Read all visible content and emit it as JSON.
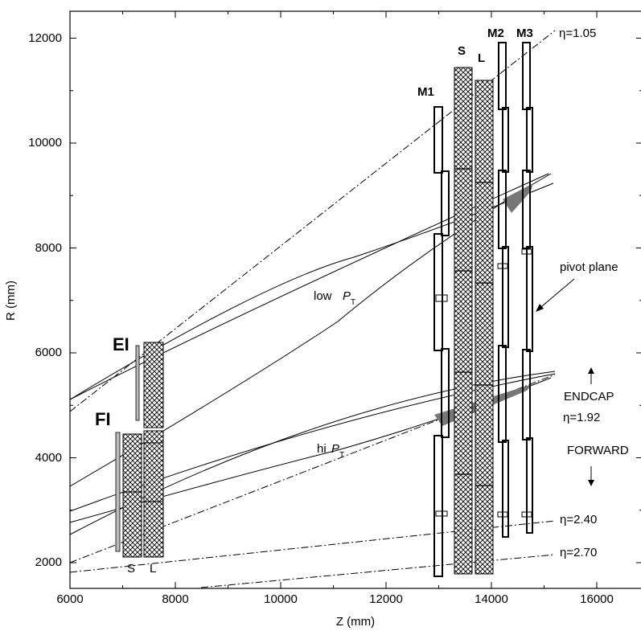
{
  "axes": {
    "x_label": "Z (mm)",
    "y_label": "R (mm)",
    "x_range": [
      6000,
      16800
    ],
    "y_range": [
      1500,
      12500
    ],
    "x_ticks": [
      "6000",
      "8000",
      "10000",
      "12000",
      "14000",
      "16000"
    ],
    "y_ticks": [
      "2000",
      "4000",
      "6000",
      "8000",
      "10000",
      "12000"
    ]
  },
  "stations": {
    "ei": "EI",
    "fi": "FI",
    "m1": "M1",
    "m2": "M2",
    "m3": "M3",
    "inner_s": "S",
    "inner_l": "L",
    "big_s": "S",
    "big_l": "L"
  },
  "eta_labels": {
    "eta105": "η=1.05",
    "eta192": "η=1.92",
    "eta240": "η=2.40",
    "eta270": "η=2.70"
  },
  "annotations": {
    "low_pt": "low",
    "hi_pt": "hi",
    "pt_symbol": "P",
    "pt_sub": "T",
    "pivot_plane": "pivot plane",
    "endcap": "ENDCAP",
    "forward": "FORWARD"
  },
  "colors": {
    "line": "#000000",
    "shade": "#777777",
    "hatch": "#000000"
  }
}
